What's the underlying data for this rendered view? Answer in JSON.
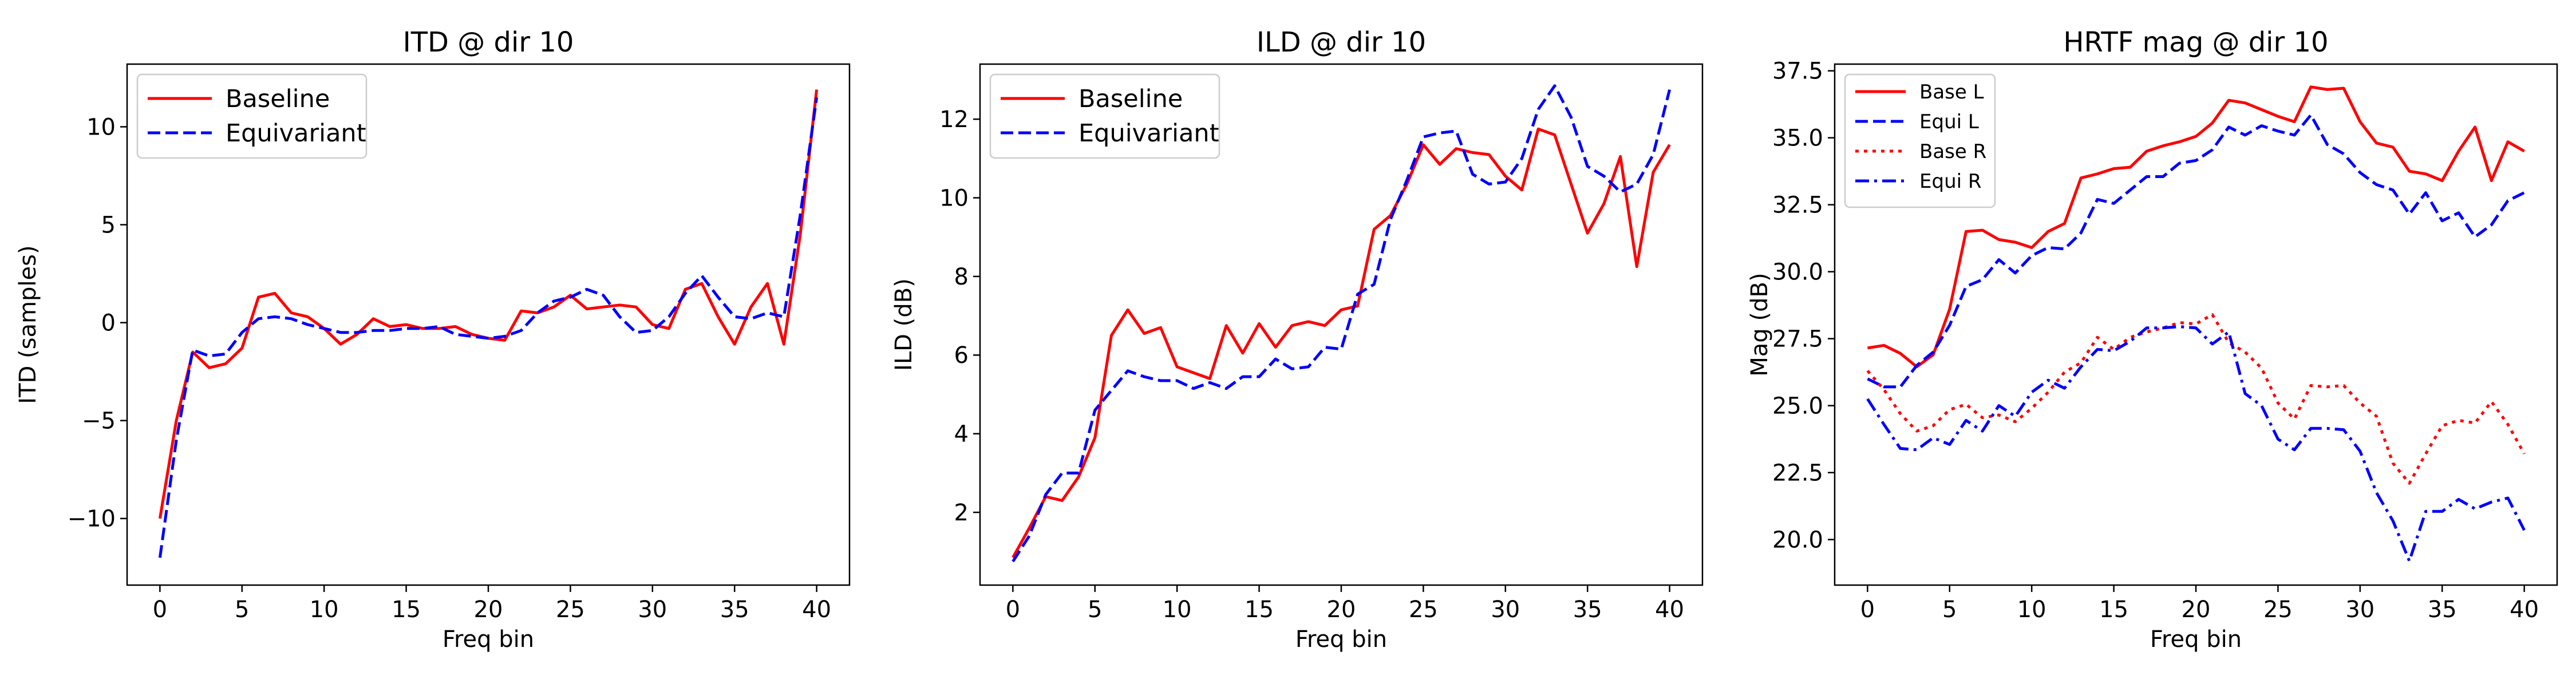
{
  "chart_data": [
    {
      "type": "line",
      "title": "ITD @ dir 10",
      "xlabel": "Freq bin",
      "ylabel": "ITD (samples)",
      "xlim": [
        -2,
        42
      ],
      "ylim": [
        -13.4,
        13.2
      ],
      "xticks": [
        0,
        5,
        10,
        15,
        20,
        25,
        30,
        35,
        40
      ],
      "yticks": [
        -10,
        -5,
        0,
        5,
        10
      ],
      "ytick_labels": [
        "−10",
        "−5",
        "0",
        "5",
        "10"
      ],
      "legend": "upper left",
      "series": [
        {
          "name": "Baseline",
          "color": "#ff0000",
          "style": "solid",
          "values": [
            -10,
            -5,
            -1.5,
            -2.3,
            -2.1,
            -1.3,
            1.3,
            1.5,
            0.5,
            0.3,
            -0.3,
            -1.1,
            -0.6,
            0.2,
            -0.2,
            -0.1,
            -0.3,
            -0.3,
            -0.2,
            -0.6,
            -0.8,
            -0.9,
            0.6,
            0.5,
            0.8,
            1.4,
            0.7,
            0.8,
            0.9,
            0.8,
            -0.1,
            -0.3,
            1.7,
            2.0,
            0.3,
            -1.1,
            0.8,
            2.0,
            -1.1,
            4.5,
            11.9
          ]
        },
        {
          "name": "Equivariant",
          "color": "#0000ff",
          "style": "dashed",
          "values": [
            -12,
            -6,
            -1.4,
            -1.7,
            -1.6,
            -0.5,
            0.2,
            0.3,
            0.2,
            -0.1,
            -0.3,
            -0.5,
            -0.5,
            -0.4,
            -0.4,
            -0.3,
            -0.3,
            -0.2,
            -0.6,
            -0.7,
            -0.8,
            -0.7,
            -0.4,
            0.5,
            1.1,
            1.3,
            1.7,
            1.4,
            0.3,
            -0.5,
            -0.4,
            0.3,
            1.5,
            2.4,
            1.3,
            0.3,
            0.2,
            0.5,
            0.3,
            5.5,
            11.5
          ]
        }
      ]
    },
    {
      "type": "line",
      "title": "ILD @ dir 10",
      "xlabel": "Freq bin",
      "ylabel": "ILD (dB)",
      "xlim": [
        -2,
        42
      ],
      "ylim": [
        0.15,
        13.4
      ],
      "xticks": [
        0,
        5,
        10,
        15,
        20,
        25,
        30,
        35,
        40
      ],
      "yticks": [
        2,
        4,
        6,
        8,
        10,
        12
      ],
      "ytick_labels": [
        "2",
        "4",
        "6",
        "8",
        "10",
        "12"
      ],
      "legend": "upper left",
      "series": [
        {
          "name": "Baseline",
          "color": "#ff0000",
          "style": "solid",
          "values": [
            0.85,
            1.6,
            2.4,
            2.3,
            2.9,
            3.9,
            6.5,
            7.15,
            6.55,
            6.7,
            5.7,
            5.55,
            5.4,
            6.75,
            6.05,
            6.8,
            6.2,
            6.75,
            6.85,
            6.75,
            7.15,
            7.25,
            9.2,
            9.55,
            10.35,
            11.35,
            10.85,
            11.25,
            11.15,
            11.1,
            10.55,
            10.2,
            11.75,
            11.6,
            10.35,
            9.1,
            9.85,
            11.05,
            8.25,
            10.65,
            11.35
          ]
        },
        {
          "name": "Equivariant",
          "color": "#0000ff",
          "style": "dashed",
          "values": [
            0.75,
            1.4,
            2.45,
            3.0,
            3.0,
            4.6,
            5.1,
            5.6,
            5.45,
            5.35,
            5.35,
            5.15,
            5.3,
            5.15,
            5.45,
            5.45,
            5.9,
            5.65,
            5.7,
            6.2,
            6.15,
            7.55,
            7.8,
            9.45,
            10.45,
            11.55,
            11.65,
            11.7,
            10.6,
            10.35,
            10.4,
            11.0,
            12.25,
            12.85,
            12.05,
            10.8,
            10.55,
            10.15,
            10.35,
            11.1,
            12.75
          ]
        }
      ]
    },
    {
      "type": "line",
      "title": "HRTF mag @ dir 10",
      "xlabel": "Freq bin",
      "ylabel": "Mag (dB)",
      "xlim": [
        -2,
        42
      ],
      "ylim": [
        18.3,
        37.75
      ],
      "xticks": [
        0,
        5,
        10,
        15,
        20,
        25,
        30,
        35,
        40
      ],
      "yticks": [
        20.0,
        22.5,
        25.0,
        27.5,
        30.0,
        32.5,
        35.0,
        37.5
      ],
      "ytick_labels": [
        "20.0",
        "22.5",
        "25.0",
        "27.5",
        "30.0",
        "32.5",
        "35.0",
        "37.5"
      ],
      "legend": "upper left",
      "series": [
        {
          "name": "Base L",
          "color": "#ff0000",
          "style": "solid",
          "values": [
            27.15,
            27.25,
            26.95,
            26.45,
            26.9,
            28.6,
            31.5,
            31.55,
            31.2,
            31.1,
            30.9,
            31.5,
            31.8,
            33.5,
            33.65,
            33.85,
            33.9,
            34.5,
            34.7,
            34.85,
            35.05,
            35.55,
            36.4,
            36.3,
            36.05,
            35.8,
            35.6,
            36.9,
            36.8,
            36.85,
            35.6,
            34.8,
            34.65,
            33.75,
            33.65,
            33.4,
            34.5,
            35.4,
            33.4,
            34.85,
            34.5
          ]
        },
        {
          "name": "Equi L",
          "color": "#0000ff",
          "style": "dashed",
          "values": [
            26.0,
            25.7,
            25.7,
            26.5,
            27.0,
            28.0,
            29.45,
            29.7,
            30.45,
            29.95,
            30.6,
            30.9,
            30.85,
            31.45,
            32.7,
            32.55,
            33.05,
            33.55,
            33.55,
            34.05,
            34.15,
            34.55,
            35.4,
            35.1,
            35.45,
            35.25,
            35.1,
            35.85,
            34.75,
            34.4,
            33.7,
            33.25,
            33.05,
            32.15,
            32.95,
            31.9,
            32.2,
            31.3,
            31.75,
            32.65,
            32.95
          ]
        },
        {
          "name": "Base R",
          "color": "#ff0000",
          "style": "dotted",
          "values": [
            26.3,
            25.6,
            24.7,
            24.05,
            24.25,
            24.85,
            25.05,
            24.55,
            24.65,
            24.4,
            24.9,
            25.5,
            26.25,
            26.6,
            27.55,
            27.1,
            27.55,
            27.75,
            27.9,
            28.1,
            28.05,
            28.4,
            27.35,
            27.0,
            26.4,
            25.1,
            24.5,
            25.75,
            25.7,
            25.75,
            25.1,
            24.6,
            22.85,
            22.1,
            23.2,
            24.25,
            24.45,
            24.35,
            25.15,
            24.3,
            23.2
          ]
        },
        {
          "name": "Equi R",
          "color": "#0000ff",
          "style": "dashdot",
          "values": [
            25.25,
            24.3,
            23.4,
            23.35,
            23.8,
            23.55,
            24.45,
            24.05,
            25.0,
            24.6,
            25.5,
            25.95,
            25.65,
            26.45,
            27.1,
            27.05,
            27.4,
            27.9,
            27.9,
            27.95,
            27.9,
            27.3,
            27.75,
            25.45,
            25.0,
            23.75,
            23.35,
            24.15,
            24.15,
            24.1,
            23.3,
            21.75,
            20.7,
            19.2,
            21.05,
            21.05,
            21.5,
            21.15,
            21.4,
            21.55,
            20.35
          ]
        }
      ]
    }
  ]
}
